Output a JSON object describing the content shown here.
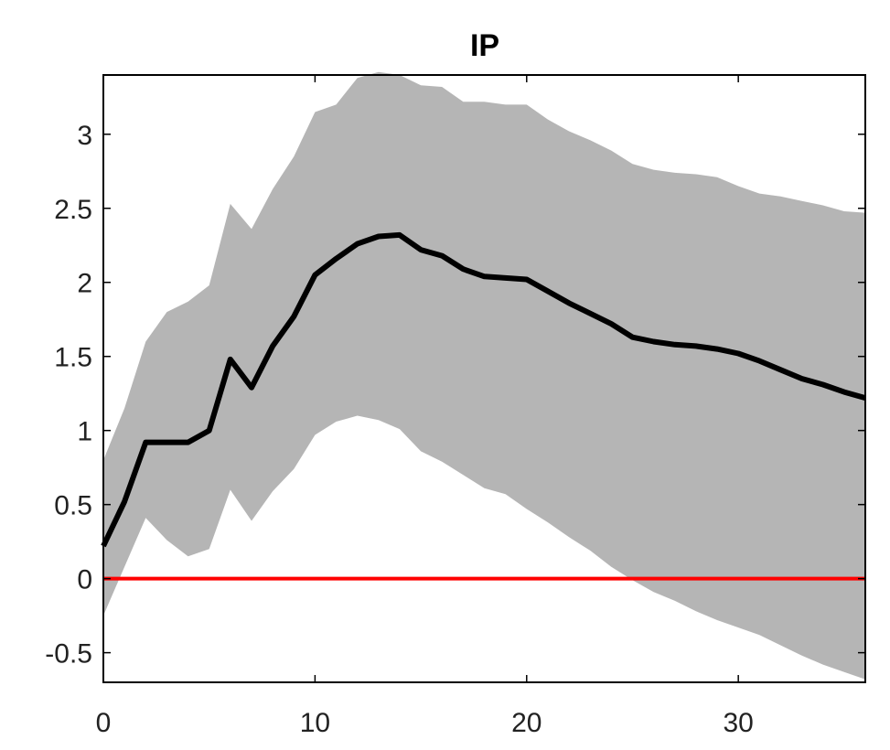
{
  "chart_data": {
    "type": "line",
    "title": "IP",
    "xlabel": "",
    "ylabel": "",
    "xlim": [
      0,
      36
    ],
    "ylim": [
      -0.7,
      3.4
    ],
    "xticks": [
      0,
      10,
      20,
      30
    ],
    "yticks": [
      -0.5,
      0,
      0.5,
      1,
      1.5,
      2,
      2.5,
      3
    ],
    "xtick_labels": [
      "0",
      "10",
      "20",
      "30"
    ],
    "ytick_labels": [
      "-0.5",
      "0",
      "0.5",
      "1",
      "1.5",
      "2",
      "2.5",
      "3"
    ],
    "grid": false,
    "x": [
      0,
      1,
      2,
      3,
      4,
      5,
      6,
      7,
      8,
      9,
      10,
      11,
      12,
      13,
      14,
      15,
      16,
      17,
      18,
      19,
      20,
      21,
      22,
      23,
      24,
      25,
      26,
      27,
      28,
      29,
      30,
      31,
      32,
      33,
      34,
      35,
      36
    ],
    "series": [
      {
        "kind": "line",
        "color": "#000000",
        "values": [
          0.22,
          0.52,
          0.92,
          0.92,
          0.92,
          1.0,
          1.48,
          1.29,
          1.57,
          1.77,
          2.05,
          2.16,
          2.26,
          2.31,
          2.32,
          2.22,
          2.18,
          2.09,
          2.04,
          2.03,
          2.02,
          1.94,
          1.86,
          1.79,
          1.72,
          1.63,
          1.6,
          1.58,
          1.57,
          1.55,
          1.52,
          1.47,
          1.41,
          1.35,
          1.31,
          1.26,
          1.22
        ]
      },
      {
        "kind": "band",
        "color": "#b5b5b5",
        "upper": [
          0.8,
          1.15,
          1.6,
          1.8,
          1.87,
          1.98,
          2.53,
          2.36,
          2.63,
          2.85,
          3.15,
          3.2,
          3.38,
          3.42,
          3.4,
          3.33,
          3.32,
          3.22,
          3.22,
          3.2,
          3.2,
          3.1,
          3.02,
          2.96,
          2.89,
          2.8,
          2.76,
          2.74,
          2.73,
          2.71,
          2.65,
          2.6,
          2.58,
          2.55,
          2.52,
          2.48,
          2.47
        ],
        "lower": [
          -0.25,
          0.08,
          0.41,
          0.26,
          0.15,
          0.2,
          0.6,
          0.39,
          0.59,
          0.74,
          0.97,
          1.06,
          1.1,
          1.07,
          1.01,
          0.86,
          0.79,
          0.7,
          0.61,
          0.57,
          0.47,
          0.38,
          0.28,
          0.19,
          0.08,
          -0.01,
          -0.09,
          -0.15,
          -0.22,
          -0.28,
          -0.33,
          -0.38,
          -0.45,
          -0.52,
          -0.58,
          -0.63,
          -0.68
        ]
      },
      {
        "kind": "hline",
        "color": "#ff0000",
        "y": 0
      }
    ]
  }
}
